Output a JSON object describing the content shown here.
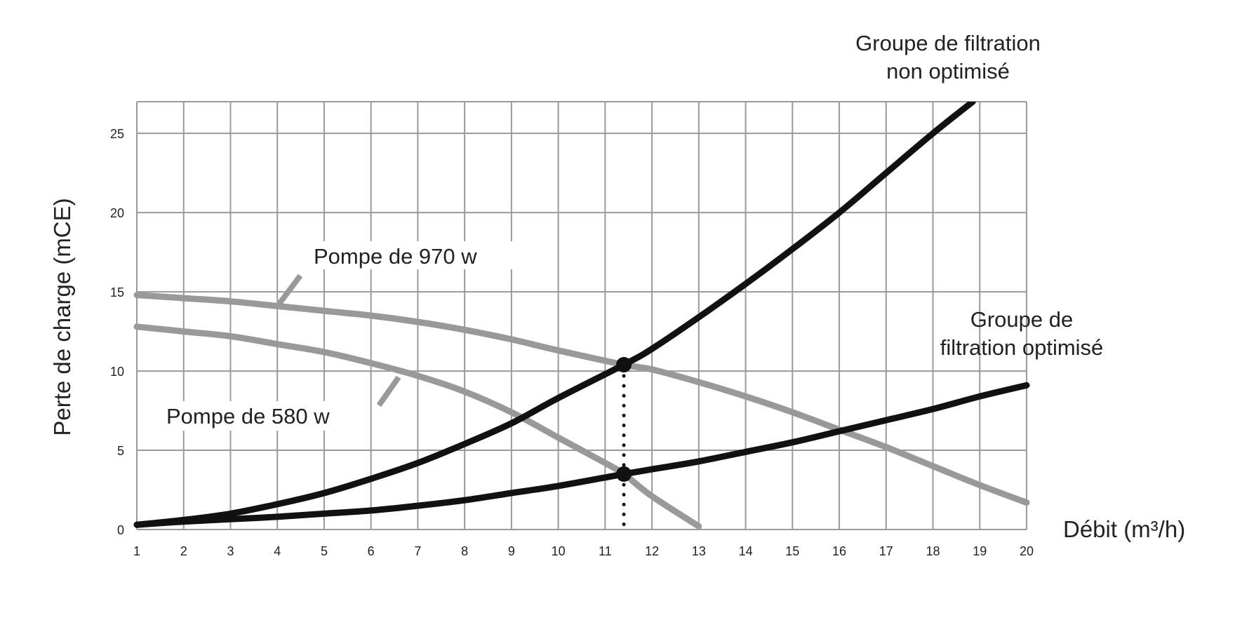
{
  "chart_data": {
    "type": "line",
    "xlabel": "Débit (m³/h)",
    "ylabel": "Perte de charge (mCE)",
    "xlim": [
      1,
      20
    ],
    "ylim": [
      0,
      27
    ],
    "grid": true,
    "x_ticks": [
      1,
      2,
      3,
      4,
      5,
      6,
      7,
      8,
      9,
      10,
      11,
      12,
      13,
      14,
      15,
      16,
      17,
      18,
      19,
      20
    ],
    "y_ticks": [
      0,
      5,
      10,
      15,
      20,
      25
    ],
    "series": [
      {
        "name": "Groupe de filtration non optimisé",
        "color": "#111111",
        "points": [
          [
            1,
            0.3
          ],
          [
            2,
            0.6
          ],
          [
            3,
            1.0
          ],
          [
            4,
            1.6
          ],
          [
            5,
            2.3
          ],
          [
            6,
            3.2
          ],
          [
            7,
            4.2
          ],
          [
            8,
            5.4
          ],
          [
            9,
            6.7
          ],
          [
            10,
            8.3
          ],
          [
            11.4,
            10.4
          ],
          [
            12,
            11.4
          ],
          [
            13,
            13.4
          ],
          [
            14,
            15.5
          ],
          [
            15,
            17.7
          ],
          [
            16,
            20.0
          ],
          [
            17,
            22.5
          ],
          [
            18,
            25.0
          ],
          [
            18.85,
            27.0
          ]
        ]
      },
      {
        "name": "Groupe de filtration optimisé",
        "color": "#111111",
        "points": [
          [
            1,
            0.3
          ],
          [
            2,
            0.5
          ],
          [
            3,
            0.65
          ],
          [
            4,
            0.8
          ],
          [
            5,
            1.0
          ],
          [
            6,
            1.2
          ],
          [
            7,
            1.5
          ],
          [
            8,
            1.85
          ],
          [
            9,
            2.3
          ],
          [
            10,
            2.75
          ],
          [
            11.4,
            3.5
          ],
          [
            12,
            3.8
          ],
          [
            13,
            4.3
          ],
          [
            14,
            4.9
          ],
          [
            15,
            5.5
          ],
          [
            16,
            6.2
          ],
          [
            17,
            6.9
          ],
          [
            18,
            7.6
          ],
          [
            19,
            8.4
          ],
          [
            20,
            9.1
          ]
        ]
      },
      {
        "name": "Pompe de 970 w",
        "color": "#999999",
        "points": [
          [
            1,
            14.8
          ],
          [
            2,
            14.6
          ],
          [
            3,
            14.4
          ],
          [
            4,
            14.1
          ],
          [
            5,
            13.8
          ],
          [
            6,
            13.5
          ],
          [
            7,
            13.1
          ],
          [
            8,
            12.6
          ],
          [
            9,
            12.0
          ],
          [
            10,
            11.3
          ],
          [
            11.4,
            10.4
          ],
          [
            12,
            10.1
          ],
          [
            13,
            9.3
          ],
          [
            14,
            8.4
          ],
          [
            15,
            7.4
          ],
          [
            16,
            6.3
          ],
          [
            17,
            5.2
          ],
          [
            18,
            4.0
          ],
          [
            19,
            2.8
          ],
          [
            20,
            1.7
          ]
        ]
      },
      {
        "name": "Pompe de 580 w",
        "color": "#999999",
        "points": [
          [
            1,
            12.8
          ],
          [
            2,
            12.5
          ],
          [
            3,
            12.2
          ],
          [
            4,
            11.7
          ],
          [
            5,
            11.2
          ],
          [
            6,
            10.5
          ],
          [
            7,
            9.7
          ],
          [
            8,
            8.7
          ],
          [
            9,
            7.4
          ],
          [
            10,
            5.8
          ],
          [
            11,
            4.2
          ],
          [
            11.4,
            3.5
          ],
          [
            12,
            2.1
          ],
          [
            13,
            0.2
          ]
        ]
      }
    ],
    "operating_points": [
      {
        "x": 11.4,
        "y": 10.4
      },
      {
        "x": 11.4,
        "y": 3.5
      }
    ],
    "annotations": {
      "non_optimise_line1": "Groupe de filtration",
      "non_optimise_line2": "non optimisé",
      "optimise_line1": "Groupe de",
      "optimise_line2": "filtration optimisé",
      "pompe970": "Pompe de 970 w",
      "pompe580": "Pompe de 580 w"
    }
  }
}
